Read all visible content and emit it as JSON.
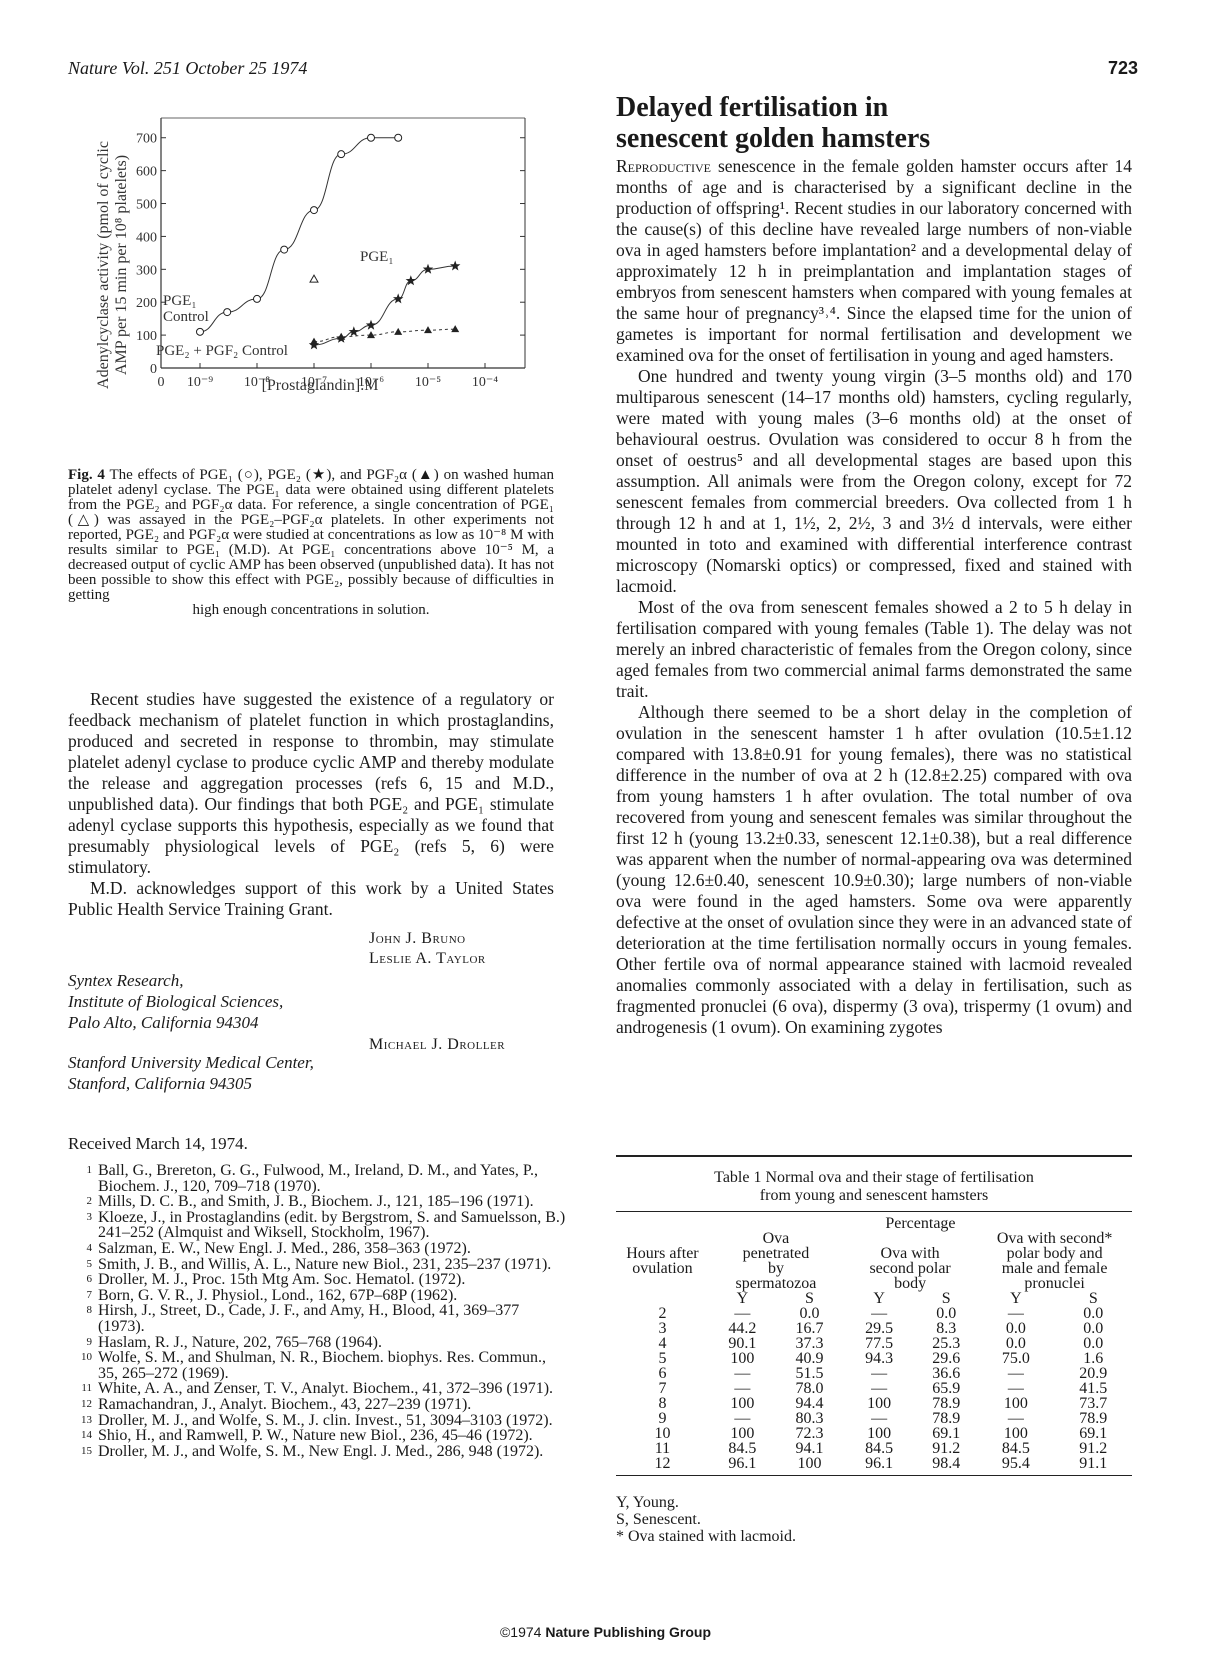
{
  "header": {
    "journal": "Nature Vol. 251 October 25 1974",
    "page_number": "723"
  },
  "figure": {
    "y_axis_label_1": "Adenylcyclase activity (pmol of cyclic",
    "y_axis_label_2": "AMP per 15 min per 10⁸ platelets)",
    "x_axis_label": "[Prostaglandin].M",
    "annotations": [
      "PGE₁",
      "PGE₁",
      "Control",
      "PGE₂ + PGF₂ Control"
    ],
    "x_tick_labels": [
      "0",
      "10⁻⁹",
      "10⁻⁸",
      "10⁻⁷",
      "10⁻⁶",
      "10⁻⁵",
      "10⁻⁴"
    ],
    "y_tick_labels": [
      "0",
      "100",
      "200",
      "300",
      "400",
      "500",
      "600",
      "700"
    ]
  },
  "chart_data": {
    "type": "line",
    "xlabel": "[Prostaglandin].M",
    "ylabel": "Adenylcyclase activity (pmol of cyclic AMP per 15 min per 10⁸ platelets)",
    "x_ticks": [
      "0",
      "10⁻⁹",
      "10⁻⁸",
      "10⁻⁷",
      "10⁻⁶",
      "10⁻⁵",
      "10⁻⁴"
    ],
    "y_ticks": [
      0,
      100,
      200,
      300,
      400,
      500,
      600,
      700
    ],
    "ylim": [
      0,
      760
    ],
    "series": [
      {
        "name": "PGE₁",
        "marker": "open-circle",
        "x": [
          "1e-9",
          "3e-9",
          "1e-8",
          "3e-8",
          "1e-7",
          "3e-7",
          "1e-6",
          "3e-6"
        ],
        "y": [
          110,
          170,
          210,
          360,
          480,
          650,
          700,
          700
        ]
      },
      {
        "name": "PGE₂",
        "marker": "star",
        "x": [
          "1e-7",
          "3e-7",
          "5e-7",
          "1e-6",
          "3e-6",
          "5e-6",
          "1e-5",
          "3e-5"
        ],
        "y": [
          70,
          90,
          110,
          130,
          210,
          265,
          300,
          310
        ]
      },
      {
        "name": "PGF₂α",
        "marker": "filled-triangle",
        "x": [
          "1e-7",
          "3e-7",
          "1e-6",
          "3e-6",
          "1e-5",
          "3e-5"
        ],
        "y": [
          80,
          95,
          100,
          110,
          115,
          118
        ]
      },
      {
        "name": "PGE₁ (single concentration)",
        "marker": "open-triangle",
        "x": [
          "1e-7"
        ],
        "y": [
          270
        ]
      }
    ],
    "grid": false
  },
  "caption": {
    "fig_label": "Fig. 4",
    "text": "The effects of PGE₁ (○), PGE₂ (★), and PGF₂α (▲) on washed human platelet adenyl cyclase. The PGE₁ data were obtained using different platelets from the PGE₂ and PGF₂α data. For reference, a single concentration of PGE₁ (△) was assayed in the PGE₂–PGF₂α platelets. In other experiments not reported, PGE₂ and PGF₂α were studied at concentrations as low as 10⁻⁸ M with results similar to PGE₁ (M.D). At PGE₁ concentrations above 10⁻⁵ M, a decreased output of cyclic AMP has been observed (unpublished data). It has not been possible to show this effect with PGE₂, possibly because of difficulties in getting",
    "last_line": "high enough concentrations in solution."
  },
  "left_body": {
    "p1": "Recent studies have suggested the existence of a regulatory or feedback mechanism of platelet function in which prostaglandins, produced and secreted in response to thrombin, may stimulate platelet adenyl cyclase to produce cyclic AMP and thereby modulate the release and aggregation processes (refs 6, 15 and M.D., unpublished data). Our findings that both PGE₂ and PGE₁ stimulate adenyl cyclase supports this hypothesis, especially as we found that presumably physiological levels of PGE₂ (refs 5, 6) were stimulatory.",
    "p2": "M.D. acknowledges support of this work by a United States Public Health Service Training Grant."
  },
  "authors": {
    "a1": "John J. Bruno",
    "a2": "Leslie A. Taylor",
    "a3": "Michael J. Droller"
  },
  "affiliations": {
    "syntex": [
      "Syntex Research,",
      "Institute of Biological Sciences,",
      "Palo Alto, California 94304"
    ],
    "stanford": [
      "Stanford University Medical Center,",
      "Stanford, California 94305"
    ]
  },
  "received": "Received March 14, 1974.",
  "references": [
    {
      "n": "1",
      "text": "Ball, G., Brereton, G. G., Fulwood, M., Ireland, D. M., and Yates, P., Biochem. J., 120, 709–718 (1970)."
    },
    {
      "n": "2",
      "text": "Mills, D. C. B., and Smith, J. B., Biochem. J., 121, 185–196 (1971)."
    },
    {
      "n": "3",
      "text": "Kloeze, J., in Prostaglandins (edit. by Bergstrom, S. and Samuelsson, B.) 241–252 (Almquist and Wiksell, Stockholm, 1967)."
    },
    {
      "n": "4",
      "text": "Salzman, E. W., New Engl. J. Med., 286, 358–363 (1972)."
    },
    {
      "n": "5",
      "text": "Smith, J. B., and Willis, A. L., Nature new Biol., 231, 235–237 (1971)."
    },
    {
      "n": "6",
      "text": "Droller, M. J., Proc. 15th Mtg Am. Soc. Hematol. (1972)."
    },
    {
      "n": "7",
      "text": "Born, G. V. R., J. Physiol., Lond., 162, 67P–68P (1962)."
    },
    {
      "n": "8",
      "text": "Hirsh, J., Street, D., Cade, J. F., and Amy, H., Blood, 41, 369–377 (1973)."
    },
    {
      "n": "9",
      "text": "Haslam, R. J., Nature, 202, 765–768 (1964)."
    },
    {
      "n": "10",
      "text": "Wolfe, S. M., and Shulman, N. R., Biochem. biophys. Res. Commun., 35, 265–272 (1969)."
    },
    {
      "n": "11",
      "text": "White, A. A., and Zenser, T. V., Analyt. Biochem., 41, 372–396 (1971)."
    },
    {
      "n": "12",
      "text": "Ramachandran, J., Analyt. Biochem., 43, 227–239 (1971)."
    },
    {
      "n": "13",
      "text": "Droller, M. J., and Wolfe, S. M., J. clin. Invest., 51, 3094–3103 (1972)."
    },
    {
      "n": "14",
      "text": "Shio, H., and Ramwell, P. W., Nature new Biol., 236, 45–46 (1972)."
    },
    {
      "n": "15",
      "text": "Droller, M. J., and Wolfe, S. M., New Engl. J. Med., 286, 948 (1972)."
    }
  ],
  "article": {
    "title_line1": "Delayed fertilisation in",
    "title_line2": "senescent golden hamsters",
    "lead_word": "Reproductive",
    "p1": "senescence in the female golden hamster occurs after 14 months of age and is characterised by a significant decline in the production of offspring¹. Recent studies in our laboratory concerned with the cause(s) of this decline have revealed large numbers of non-viable ova in aged hamsters before implantation² and a developmental delay of approximately 12 h in preimplantation and implantation stages of embryos from senescent hamsters when compared with young females at the same hour of pregnancy³˒⁴. Since the elapsed time for the union of gametes is important for normal fertilisation and development we examined ova for the onset of fertilisation in young and aged hamsters.",
    "p2": "One hundred and twenty young virgin (3–5 months old) and 170 multiparous senescent (14–17 months old) hamsters, cycling regularly, were mated with young males (3–6 months old) at the onset of behavioural oestrus. Ovulation was considered to occur 8 h from the onset of oestrus⁵ and all developmental stages are based upon this assumption. All animals were from the Oregon colony, except for 72 senescent females from commercial breeders. Ova collected from 1 h through 12 h and at 1, 1½, 2, 2½, 3 and 3½ d intervals, were either mounted in toto and examined with differential interference contrast microscopy (Nomarski optics) or compressed, fixed and stained with lacmoid.",
    "p3": "Most of the ova from senescent females showed a 2 to 5 h delay in fertilisation compared with young females (Table 1). The delay was not merely an inbred characteristic of females from the Oregon colony, since aged females from two commercial animal farms demonstrated the same trait.",
    "p4": "Although there seemed to be a short delay in the completion of ovulation in the senescent hamster 1 h after ovulation (10.5±1.12 compared with 13.8±0.91 for young females), there was no statistical difference in the number of ova at 2 h (12.8±2.25) compared with ova from young hamsters 1 h after ovulation. The total number of ova recovered from young and senescent females was similar throughout the first 12 h (young 13.2±0.33, senescent 12.1±0.38), but a real difference was apparent when the number of normal-appearing ova was determined (young 12.6±0.40, senescent 10.9±0.30); large numbers of non-viable ova were found in the aged hamsters. Some ova were apparently defective at the onset of ovulation since they were in an advanced state of deterioration at the time fertilisation normally occurs in young females. Other fertile ova of normal appearance stained with lacmoid revealed anomalies commonly associated with a delay in fertilisation, such as fragmented pronuclei (6 ova), dispermy (3 ova), trispermy (1 ovum) and androgenesis (1 ovum). On examining zygotes"
  },
  "table": {
    "title_line1": "Table 1  Normal ova and their stage of fertilisation",
    "title_line2": "from young and senescent hamsters",
    "percentage_label": "Percentage",
    "col_hours": [
      "Hours after",
      "ovulation"
    ],
    "col1": [
      "Ova",
      "penetrated",
      "by",
      "spermatozoa"
    ],
    "col2": [
      "Ova with",
      "second polar",
      "body"
    ],
    "col3": [
      "Ova with second*",
      "polar body and",
      "male and female",
      "pronuclei"
    ],
    "sub": [
      "Y",
      "S",
      "Y",
      "S",
      "Y",
      "S"
    ],
    "rows": [
      [
        "2",
        "—",
        "0.0",
        "—",
        "0.0",
        "—",
        "0.0"
      ],
      [
        "3",
        "44.2",
        "16.7",
        "29.5",
        "8.3",
        "0.0",
        "0.0"
      ],
      [
        "4",
        "90.1",
        "37.3",
        "77.5",
        "25.3",
        "0.0",
        "0.0"
      ],
      [
        "5",
        "100",
        "40.9",
        "94.3",
        "29.6",
        "75.0",
        "1.6"
      ],
      [
        "6",
        "—",
        "51.5",
        "—",
        "36.6",
        "—",
        "20.9"
      ],
      [
        "7",
        "—",
        "78.0",
        "—",
        "65.9",
        "—",
        "41.5"
      ],
      [
        "8",
        "100",
        "94.4",
        "100",
        "78.9",
        "100",
        "73.7"
      ],
      [
        "9",
        "—",
        "80.3",
        "—",
        "78.9",
        "—",
        "78.9"
      ],
      [
        "10",
        "100",
        "72.3",
        "100",
        "69.1",
        "100",
        "69.1"
      ],
      [
        "11",
        "84.5",
        "94.1",
        "84.5",
        "91.2",
        "84.5",
        "91.2"
      ],
      [
        "12",
        "96.1",
        "100",
        "96.1",
        "98.4",
        "95.4",
        "91.1"
      ]
    ],
    "notes": [
      "Y, Young.",
      "S, Senescent.",
      "* Ova stained with lacmoid."
    ]
  },
  "footer": {
    "copyright": "©1974",
    "publisher": "Nature Publishing Group"
  }
}
